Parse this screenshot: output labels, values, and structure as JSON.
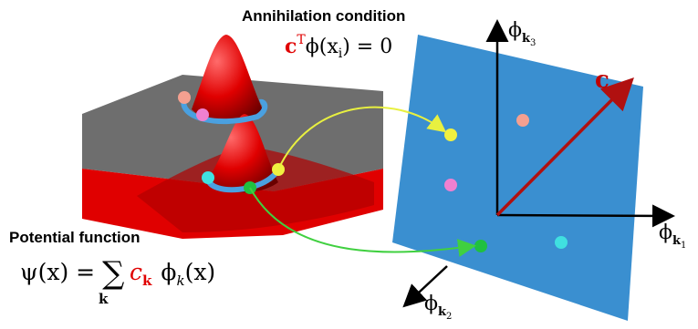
{
  "annihilation": {
    "title": "Annihilation condition",
    "formula": {
      "vec": "c",
      "sup": "T",
      "body": "ϕ(x",
      "sub": "i",
      "end": ") = 0"
    }
  },
  "potential": {
    "title": "Potential function",
    "formula": {
      "lhs": "ψ(x) = ",
      "sum": "∑",
      "sum_sub": "k",
      "coef": "c",
      "coef_sub": "k",
      "basis": "ϕ",
      "basis_sub": "k",
      "end": "(x)"
    }
  },
  "axes": {
    "up": {
      "symbol": "ϕ",
      "sub": "k",
      "index": "3"
    },
    "right": {
      "symbol": "ϕ",
      "sub": "k",
      "index": "1"
    },
    "down": {
      "symbol": "ϕ",
      "sub": "k",
      "index": "2"
    }
  },
  "vector_label": "c"
}
